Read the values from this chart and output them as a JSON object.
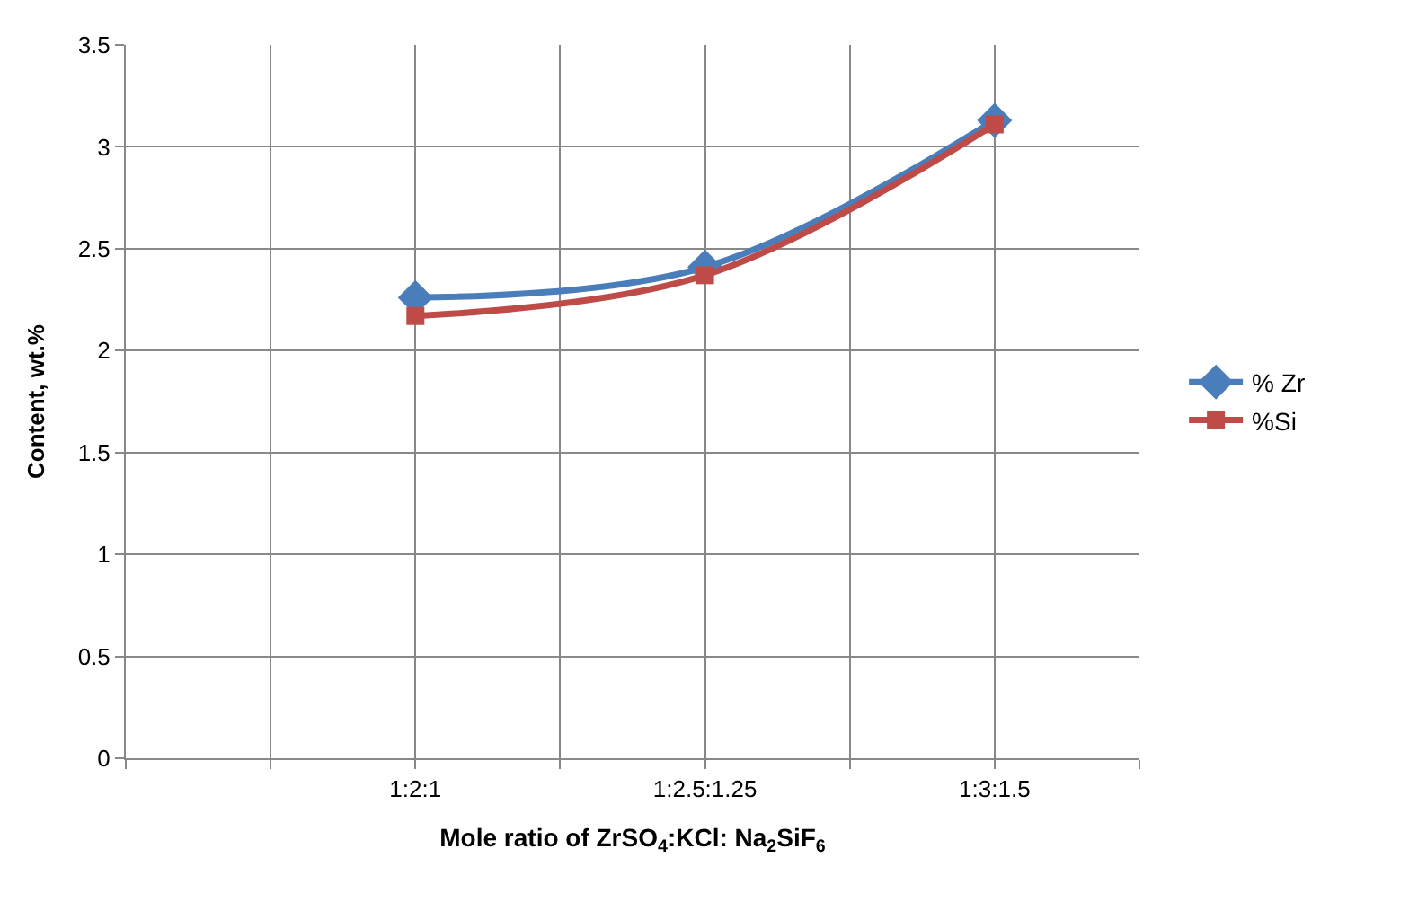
{
  "chart_data": {
    "type": "line",
    "xlabel": "Mole ratio of ZrSO$_{4}$:KCl: Na$_{2}$SiF$_{6}$",
    "ylabel": "Content, wt.%",
    "categories": [
      null,
      null,
      "1:2:1",
      null,
      "1:2.5:1.25",
      null,
      "1:3:1.5",
      null
    ],
    "ylim": [
      0,
      3.5
    ],
    "yticks": [
      0,
      0.5,
      1,
      1.5,
      2,
      2.5,
      3,
      3.5
    ],
    "series": [
      {
        "name": "% Zr",
        "color": "#4a7ebb",
        "marker": "diamond",
        "values": [
          null,
          null,
          2.26,
          null,
          2.41,
          null,
          3.13,
          null
        ]
      },
      {
        "name": "%Si",
        "color": "#be4b48",
        "marker": "square",
        "values": [
          null,
          null,
          2.17,
          null,
          2.37,
          null,
          3.11,
          null
        ]
      }
    ],
    "grid": true,
    "legend": "right",
    "line_style": "solid"
  }
}
